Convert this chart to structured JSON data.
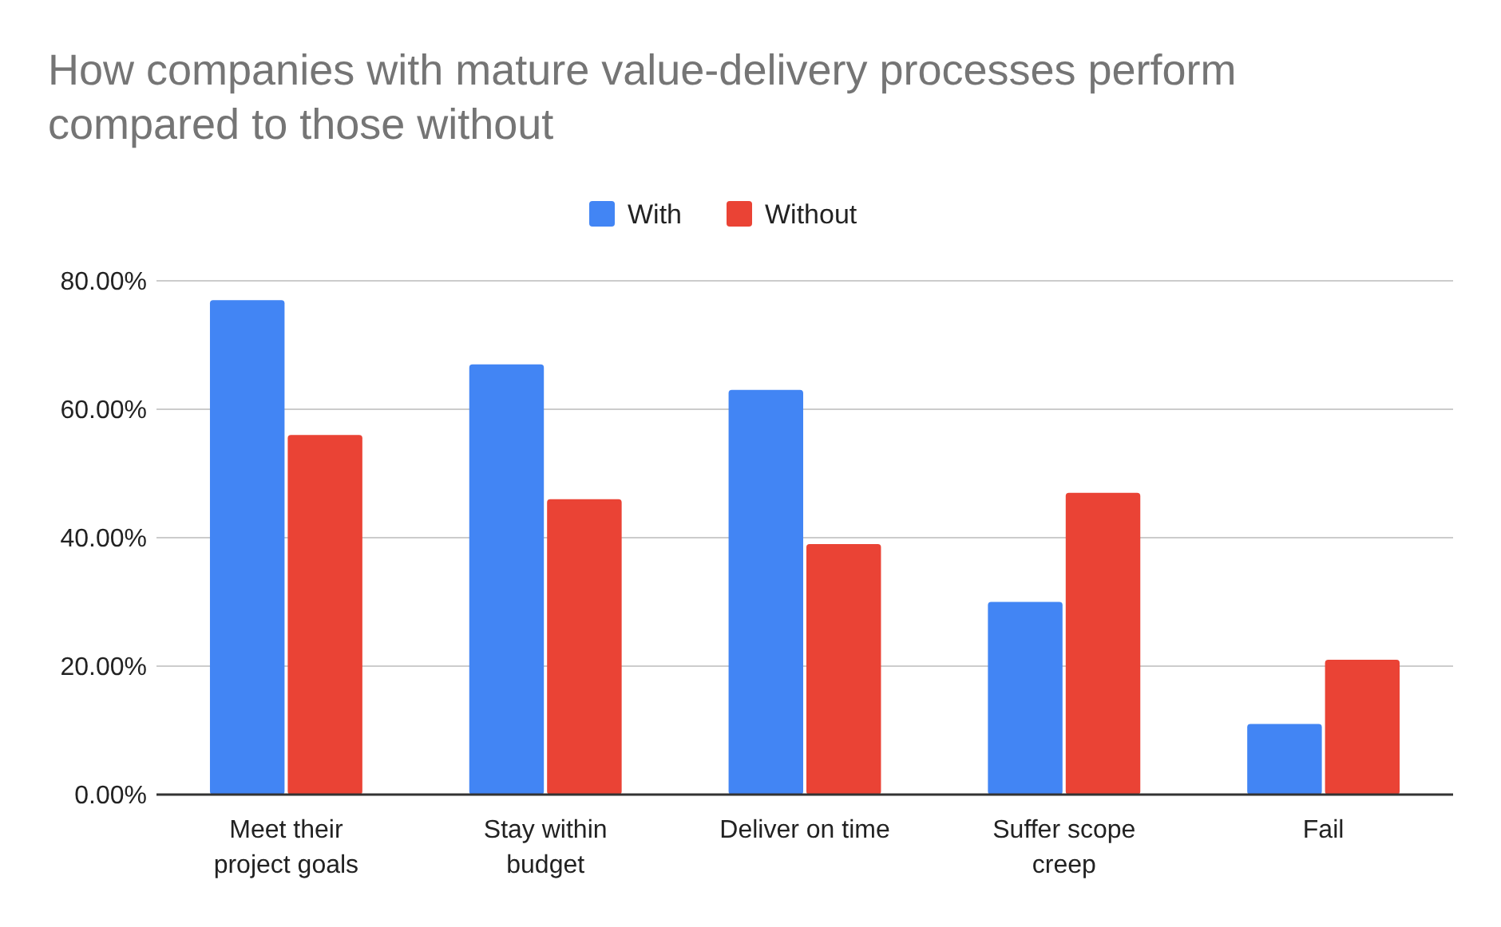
{
  "chart_data": {
    "type": "bar",
    "title": "How companies with mature value-delivery processes perform compared to those without",
    "categories": [
      "Meet their project goals",
      "Stay within budget",
      "Deliver on time",
      "Suffer scope creep",
      "Fail"
    ],
    "series": [
      {
        "name": "With",
        "color": "#4285f4",
        "values": [
          77,
          67,
          63,
          30,
          11
        ]
      },
      {
        "name": "Without",
        "color": "#ea4335",
        "values": [
          56,
          46,
          39,
          47,
          21
        ]
      }
    ],
    "ylim": [
      0,
      80
    ],
    "yticks": [
      {
        "value": 0,
        "label": "0.00%"
      },
      {
        "value": 20,
        "label": "20.00%"
      },
      {
        "value": 40,
        "label": "40.00%"
      },
      {
        "value": 60,
        "label": "60.00%"
      },
      {
        "value": 80,
        "label": "80.00%"
      }
    ],
    "grid": "y",
    "legend": "top"
  }
}
